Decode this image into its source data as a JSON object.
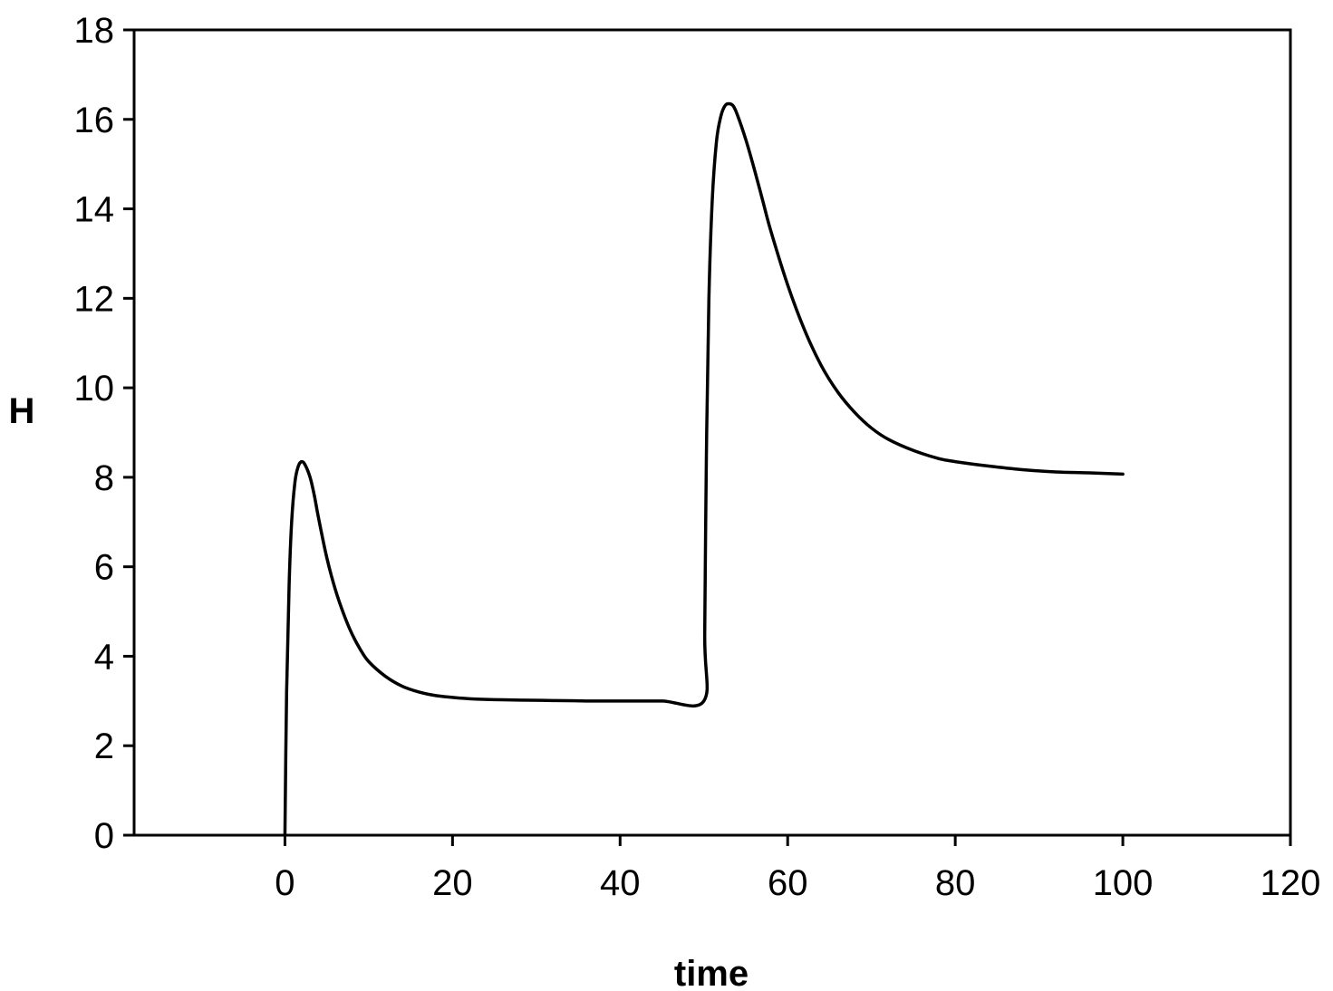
{
  "chart_data": {
    "type": "line",
    "title": "",
    "xlabel": "time",
    "ylabel": "H",
    "xlim": [
      -18,
      120
    ],
    "ylim": [
      0,
      18
    ],
    "xticks": [
      "0",
      "20",
      "40",
      "60",
      "80",
      "100",
      "120"
    ],
    "xtick_values": [
      0,
      20,
      40,
      60,
      80,
      100,
      120
    ],
    "yticks": [
      "0",
      "2",
      "4",
      "6",
      "8",
      "10",
      "12",
      "14",
      "16",
      "18"
    ],
    "ytick_values": [
      0,
      2,
      4,
      6,
      8,
      10,
      12,
      14,
      16,
      18
    ],
    "grid": false,
    "legend": "none",
    "line_color": "#000000",
    "series": [
      {
        "x": [
          0,
          0.2,
          0.5,
          0.8,
          1.2,
          1.6,
          2.0,
          2.4,
          3.0,
          3.5,
          4,
          5,
          6,
          7,
          8,
          9,
          10,
          12,
          14,
          16,
          18,
          20,
          22,
          25,
          28,
          32,
          36,
          40,
          45,
          50,
          50.1,
          50.3,
          50.6,
          51,
          51.5,
          52,
          52.5,
          53,
          53.5,
          54,
          55,
          56,
          57,
          58,
          60,
          62,
          64,
          66,
          68,
          70,
          72,
          75,
          78,
          80,
          84,
          88,
          92,
          96,
          100
        ],
        "y": [
          0,
          3.2,
          5.6,
          7.0,
          7.9,
          8.25,
          8.35,
          8.28,
          8.0,
          7.6,
          7.1,
          6.2,
          5.5,
          4.95,
          4.5,
          4.15,
          3.88,
          3.55,
          3.33,
          3.2,
          3.12,
          3.08,
          3.05,
          3.03,
          3.02,
          3.01,
          3.0,
          3.0,
          3.0,
          3.0,
          4.5,
          8.5,
          12.0,
          14.2,
          15.5,
          16.05,
          16.3,
          16.35,
          16.3,
          16.1,
          15.55,
          14.9,
          14.2,
          13.5,
          12.3,
          11.3,
          10.5,
          9.9,
          9.45,
          9.1,
          8.85,
          8.6,
          8.42,
          8.35,
          8.25,
          8.17,
          8.12,
          8.1,
          8.07
        ]
      }
    ]
  }
}
